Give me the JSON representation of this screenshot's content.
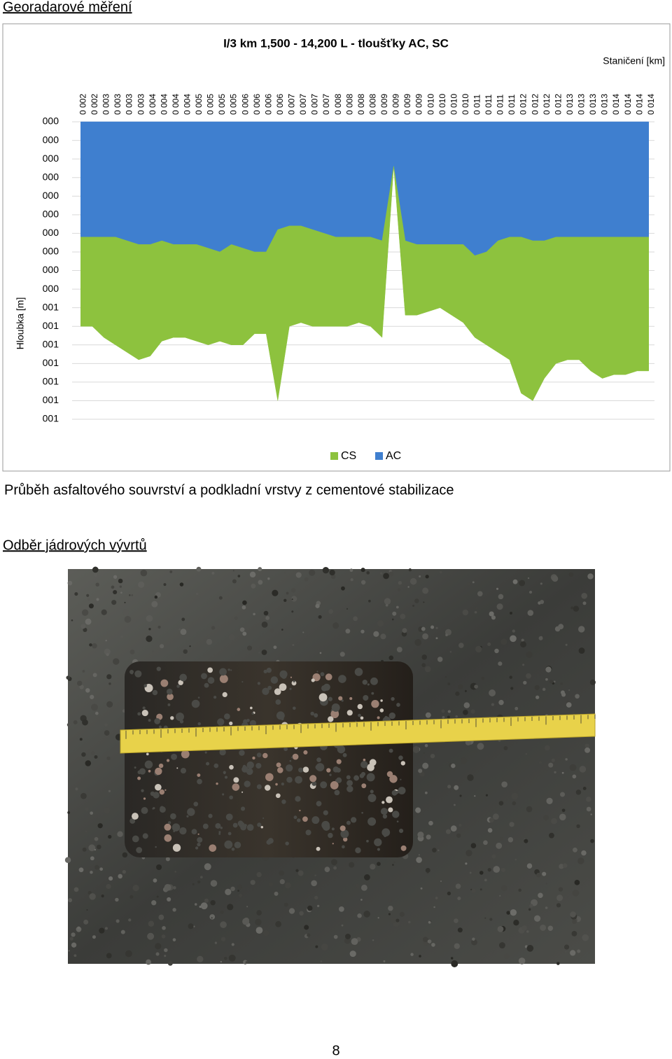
{
  "header": {
    "title": "Georadarové měření"
  },
  "chart_data": {
    "type": "area",
    "title": "I/3 km 1,500 - 14,200 L - tloušťky AC, SC",
    "x_label": "Staničení [km]",
    "y_label": "Hloubka [m]",
    "stacked": true,
    "y_reversed": true,
    "categories": [
      "0 002",
      "0 002",
      "0 003",
      "0 003",
      "0 003",
      "0 003",
      "0 004",
      "0 004",
      "0 004",
      "0 004",
      "0 005",
      "0 005",
      "0 005",
      "0 005",
      "0 006",
      "0 006",
      "0 006",
      "0 006",
      "0 007",
      "0 007",
      "0 007",
      "0 007",
      "0 008",
      "0 008",
      "0 008",
      "0 008",
      "0 009",
      "0 009",
      "0 009",
      "0 009",
      "0 010",
      "0 010",
      "0 010",
      "0 010",
      "0 011",
      "0 011",
      "0 011",
      "0 011",
      "0 012",
      "0 012",
      "0 012",
      "0 012",
      "0 013",
      "0 013",
      "0 013",
      "0 013",
      "0 014",
      "0 014",
      "0 014",
      "0 014"
    ],
    "series": [
      {
        "name": "AC",
        "color": "#3f7fcf",
        "values": [
          0.31,
          0.31,
          0.31,
          0.31,
          0.32,
          0.33,
          0.33,
          0.32,
          0.33,
          0.33,
          0.33,
          0.34,
          0.35,
          0.33,
          0.34,
          0.35,
          0.35,
          0.29,
          0.28,
          0.28,
          0.29,
          0.3,
          0.31,
          0.31,
          0.31,
          0.31,
          0.32,
          0.12,
          0.32,
          0.33,
          0.33,
          0.33,
          0.33,
          0.33,
          0.36,
          0.35,
          0.32,
          0.31,
          0.31,
          0.32,
          0.32,
          0.31,
          0.31,
          0.31,
          0.31,
          0.31,
          0.31,
          0.31,
          0.31,
          0.31
        ]
      },
      {
        "name": "CS",
        "color": "#8dc23e",
        "values": [
          0.24,
          0.24,
          0.27,
          0.29,
          0.3,
          0.31,
          0.3,
          0.27,
          0.25,
          0.25,
          0.26,
          0.26,
          0.24,
          0.27,
          0.26,
          0.22,
          0.22,
          0.46,
          0.27,
          0.26,
          0.26,
          0.25,
          0.24,
          0.24,
          0.23,
          0.24,
          0.26,
          0,
          0.2,
          0.19,
          0.18,
          0.17,
          0.19,
          0.21,
          0.22,
          0.25,
          0.3,
          0.33,
          0.42,
          0.43,
          0.37,
          0.34,
          0.33,
          0.33,
          0.36,
          0.38,
          0.37,
          0.37,
          0.36,
          0.36
        ]
      }
    ],
    "ylim": [
      0,
      0.8
    ],
    "yticks": [
      {
        "value": 0,
        "label": "000"
      },
      {
        "value": 0.05,
        "label": "000"
      },
      {
        "value": 0.1,
        "label": "000"
      },
      {
        "value": 0.15,
        "label": "000"
      },
      {
        "value": 0.2,
        "label": "000"
      },
      {
        "value": 0.25,
        "label": "000"
      },
      {
        "value": 0.3,
        "label": "000"
      },
      {
        "value": 0.35,
        "label": "000"
      },
      {
        "value": 0.4,
        "label": "000"
      },
      {
        "value": 0.45,
        "label": "000"
      },
      {
        "value": 0.5,
        "label": "001"
      },
      {
        "value": 0.55,
        "label": "001"
      },
      {
        "value": 0.6,
        "label": "001"
      },
      {
        "value": 0.65,
        "label": "001"
      },
      {
        "value": 0.7,
        "label": "001"
      },
      {
        "value": 0.75,
        "label": "001"
      },
      {
        "value": 0.8,
        "label": "001"
      }
    ],
    "grid": true
  },
  "caption": "Průběh asfaltového souvrství a podkladní vrstvy z cementové stabilizace",
  "section": {
    "title": "Odběr jádrových vývrtů"
  },
  "page_number": "8"
}
